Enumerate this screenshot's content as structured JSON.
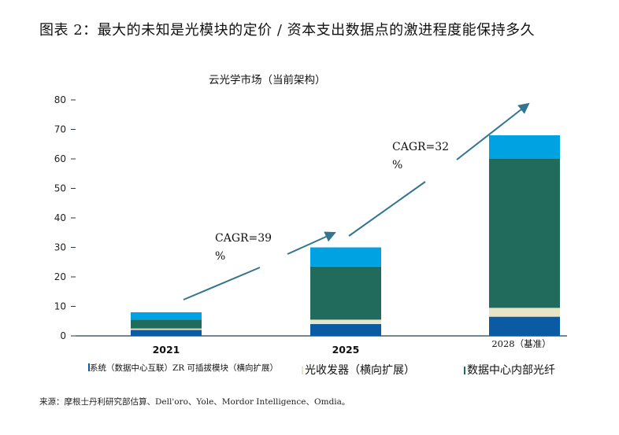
{
  "page": {
    "title": "图表 2：最大的未知是光模块的定价 / 资本支出数据点的激进程度能保持多久",
    "source": "来源：摩根士丹利研究部估算、Dell'oro、Yole、Mordor Intelligence、Omdia。"
  },
  "colors": {
    "system_zr": "#0a5aa4",
    "transceiver": "#e9e4c6",
    "dc_fiber": "#206b5b",
    "top": "#00a2e2",
    "arrow": "#33758e",
    "axis": "#2a3a48"
  },
  "chart_data": {
    "type": "bar",
    "stacked": true,
    "title": "云光学市场（当前架构）",
    "xlabel": "",
    "ylabel": "",
    "ylim": [
      0,
      80
    ],
    "yticks": [
      0,
      10,
      20,
      30,
      40,
      50,
      60,
      70,
      80
    ],
    "categories": [
      "2021",
      "2025",
      "2028（基准）"
    ],
    "series": [
      {
        "name": "系统（数据中心互联）ZR 可插拔模块（横向扩展）",
        "color": "#0a5aa4",
        "values": [
          2,
          4,
          6.5
        ]
      },
      {
        "name": "光收发器（横向扩展）",
        "color": "#e9e4c6",
        "values": [
          0.5,
          1.5,
          3
        ]
      },
      {
        "name": "数据中心内部光纤",
        "color": "#206b5b",
        "values": [
          3,
          18,
          50.5
        ]
      },
      {
        "name": "",
        "color": "#00a2e2",
        "values": [
          2.5,
          6.5,
          8
        ]
      }
    ],
    "annotations": [
      {
        "text_line1": "CAGR=39",
        "text_line2": "%",
        "from_year": "2021",
        "to_year": "2025"
      },
      {
        "text_line1": "CAGR=32",
        "text_line2": "%",
        "from_year": "2025",
        "to_year": "2028（基准）"
      }
    ]
  }
}
